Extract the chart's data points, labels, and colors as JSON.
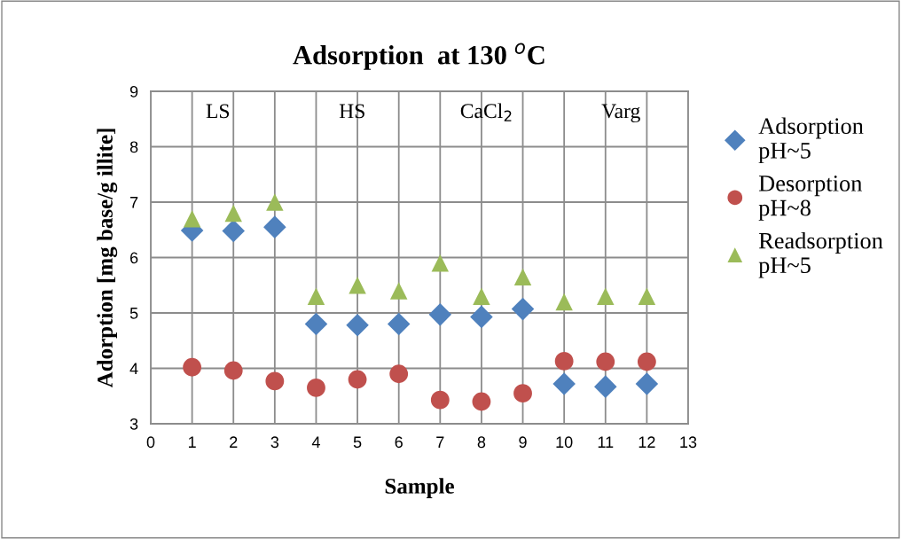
{
  "chart_data": {
    "type": "scatter",
    "title": "Adsorption  at 130 $^{o}$C",
    "xlabel": "Sample",
    "ylabel": "Adorption [mg base/g illite]",
    "x": [
      1,
      2,
      3,
      4,
      5,
      6,
      7,
      8,
      9,
      10,
      11,
      12
    ],
    "series": [
      {
        "name": "Adsorption\npH~5",
        "color": "#4f81bd",
        "marker": "diamond",
        "values": [
          6.49,
          6.48,
          6.55,
          4.8,
          4.78,
          4.8,
          4.97,
          4.93,
          5.07,
          3.72,
          3.67,
          3.72
        ]
      },
      {
        "name": "Desorption\npH~8",
        "color": "#c0504d",
        "marker": "circle",
        "values": [
          4.02,
          3.96,
          3.77,
          3.65,
          3.8,
          3.9,
          3.43,
          3.4,
          3.55,
          4.13,
          4.12,
          4.12
        ]
      },
      {
        "name": "Readsorption\npH~5",
        "color": "#9bbb59",
        "marker": "triangle",
        "values": [
          6.7,
          6.8,
          7.0,
          5.3,
          5.5,
          5.4,
          5.9,
          5.3,
          5.65,
          5.2,
          5.3,
          5.3
        ]
      }
    ],
    "annotations": [
      "LS",
      "HS",
      "CaCl$_{2}$",
      "Varg"
    ],
    "xlim": [
      0,
      13
    ],
    "xticks": [
      0,
      1,
      2,
      3,
      4,
      5,
      6,
      7,
      8,
      9,
      10,
      11,
      12,
      13
    ],
    "ylim": [
      3,
      9
    ],
    "yticks": [
      3,
      4,
      5,
      6,
      7,
      8,
      9
    ],
    "grid": true,
    "legend": "right"
  }
}
